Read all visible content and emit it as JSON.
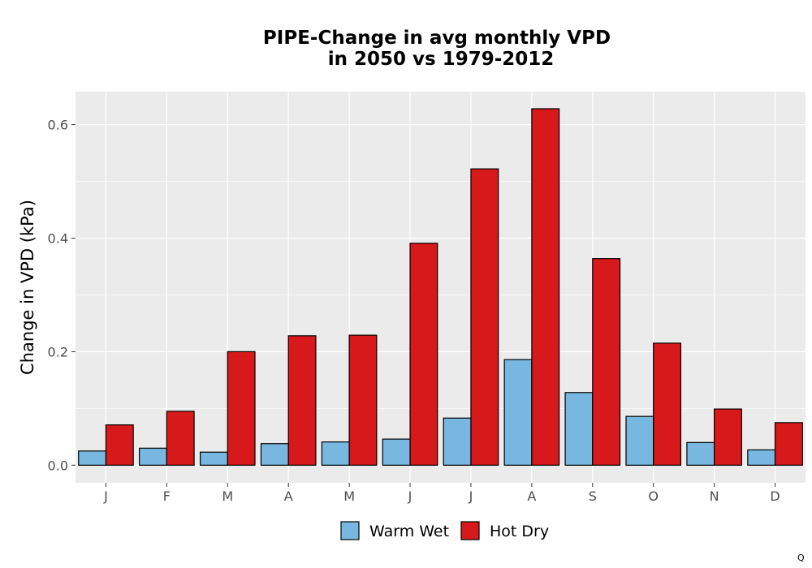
{
  "chart_data": {
    "type": "bar",
    "title": [
      "PIPE-Change in avg monthly VPD",
      "in 2050 vs 1979-2012"
    ],
    "xlabel": "",
    "ylabel": "Change in VPD (kPa)",
    "categories": [
      "J",
      "F",
      "M",
      "A",
      "M",
      "J",
      "J",
      "A",
      "S",
      "O",
      "N",
      "D"
    ],
    "series": [
      {
        "name": "Warm Wet",
        "color": "#78b8e0",
        "values": [
          0.025,
          0.03,
          0.023,
          0.038,
          0.041,
          0.046,
          0.083,
          0.186,
          0.128,
          0.086,
          0.04,
          0.027
        ]
      },
      {
        "name": "Hot Dry",
        "color": "#d7191c",
        "values": [
          0.071,
          0.095,
          0.2,
          0.228,
          0.229,
          0.391,
          0.522,
          0.628,
          0.364,
          0.215,
          0.099,
          0.075
        ]
      }
    ],
    "yticks": [
      0.0,
      0.2,
      0.4,
      0.6
    ],
    "ytick_labels": [
      "0.0",
      "0.2",
      "0.4",
      "0.6"
    ],
    "ylim": [
      -0.031,
      0.658
    ],
    "grid": true,
    "legend_position": "bottom",
    "panel_color": "#ebebeb"
  },
  "corner_mark": "Q"
}
